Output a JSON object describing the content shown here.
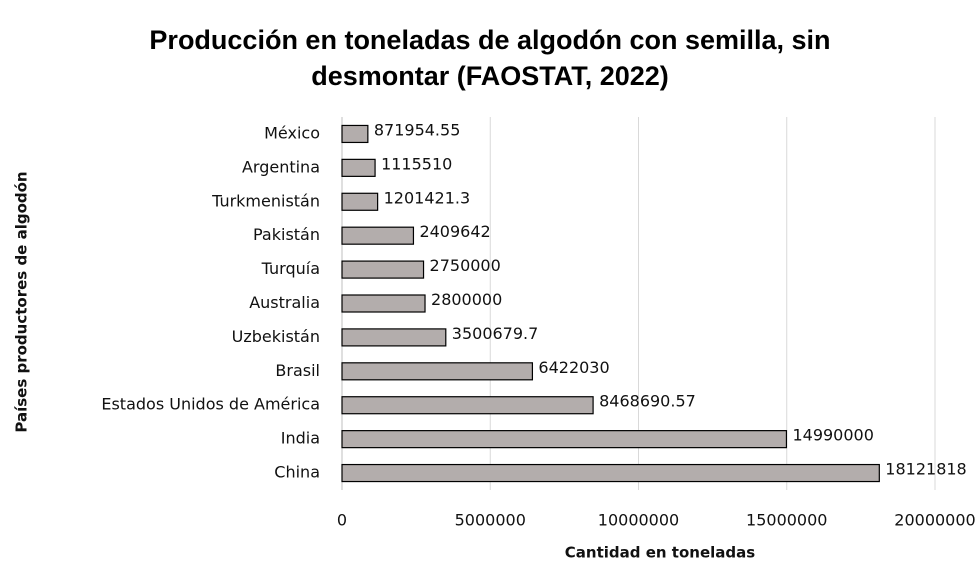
{
  "chart_data": {
    "type": "bar",
    "orientation": "horizontal",
    "title": "Producción en toneladas de algodón con semilla, sin desmontar (FAOSTAT, 2022)",
    "x_label": "Cantidad en toneladas",
    "y_label": "Países productores de algodón",
    "categories": [
      "México",
      "Argentina",
      "Turkmenistán",
      "Pakistán",
      "Turquía",
      "Australia",
      "Uzbekistán",
      "Brasil",
      "Estados Unidos de América",
      "India",
      "China"
    ],
    "values": [
      871954.55,
      1115510,
      1201421.3,
      2409642,
      2750000,
      2800000,
      3500679.7,
      6422030,
      8468690.57,
      14990000,
      18121818
    ],
    "color": "#b3adac",
    "xlim": [
      0,
      20000000
    ],
    "xticks": [
      0,
      5000000,
      10000000,
      15000000,
      20000000
    ],
    "grid": true
  }
}
